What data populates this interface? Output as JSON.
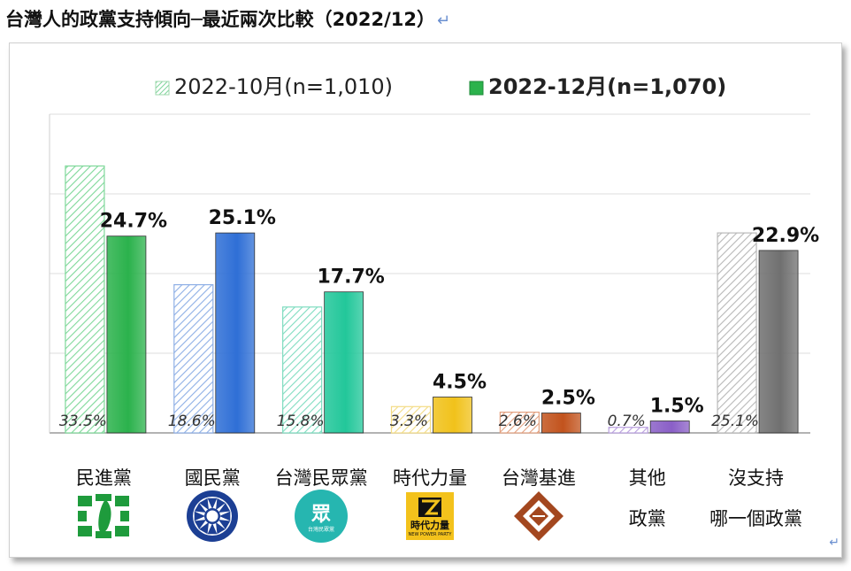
{
  "title": "台灣人的政黨支持傾向─最近兩次比較（2022/12）",
  "paragraph_mark": "↵",
  "corner_mark": "↵",
  "colors": {
    "oct_fill": "hatched-light",
    "dec_dpp": "#2bb24c",
    "dec_kmt": "#2f6fd6",
    "dec_tpp": "#22c79a",
    "dec_npp": "#f1c21b",
    "dec_tsp": "#c2531d",
    "dec_other": "#8a5fc7",
    "dec_none": "#707070"
  },
  "logos": {
    "dpp": "dpp-taiwan-map-logo",
    "kmt": "kmt-sun-emblem-logo",
    "tpp": "tpp-logo",
    "npp": "npp-logo",
    "tsp": "tsp-diamond-logo"
  },
  "logo_text": {
    "tpp_main": "眾",
    "tpp_sub": "台灣民眾黨",
    "npp_main": "時代力量",
    "npp_sub": "NEW POWER PARTY"
  },
  "chart_data": {
    "type": "bar",
    "title": "",
    "legend_position": "top",
    "ylim": [
      0,
      40
    ],
    "grid": true,
    "categories": [
      [
        "民進黨"
      ],
      [
        "國民黨"
      ],
      [
        "台灣民眾黨"
      ],
      [
        "時代力量"
      ],
      [
        "台灣基進"
      ],
      [
        "其他",
        "政黨"
      ],
      [
        "沒支持",
        "哪一個政黨"
      ]
    ],
    "series": [
      {
        "name": "2022-10月(n=1,010)",
        "values": [
          33.5,
          18.6,
          15.8,
          3.3,
          2.6,
          0.7,
          25.1
        ],
        "labels": [
          "33.5%",
          "18.6%",
          "15.8%",
          "3.3%",
          "2.6%",
          "0.7%",
          "25.1%"
        ]
      },
      {
        "name": "2022-12月(n=1,070)",
        "values": [
          24.7,
          25.1,
          17.7,
          4.5,
          2.5,
          1.5,
          22.9
        ],
        "labels": [
          "24.7%",
          "25.1%",
          "17.7%",
          "4.5%",
          "2.5%",
          "1.5%",
          "22.9%"
        ]
      }
    ]
  }
}
